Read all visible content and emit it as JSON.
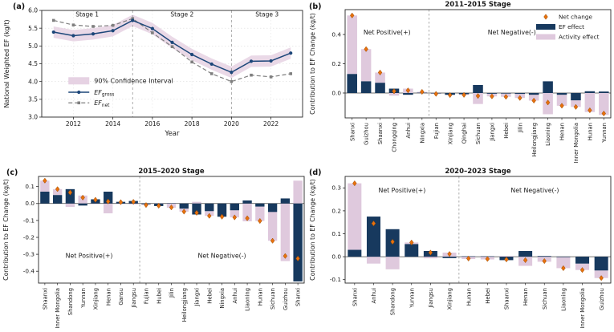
{
  "colors": {
    "ef_effect": "#17395e",
    "activity_effect": "#dfc9dd",
    "ci_band": "#e6d2e3",
    "gross_line": "#1c4679",
    "net_line": "#7f7f7f",
    "net_marker": "#e8710d",
    "net_marker_edge": "#9a4a00",
    "divider": "#999999",
    "spine": "#262626"
  },
  "chart_data": [
    {
      "panel_label": "(a)",
      "type": "line",
      "title": "",
      "xlabel": "Year",
      "ylabel": "National Weighted EF (kg/t)",
      "x": [
        2011,
        2012,
        2013,
        2014,
        2015,
        2016,
        2017,
        2018,
        2019,
        2020,
        2021,
        2022,
        2023
      ],
      "xlim": [
        2010.4,
        2023.6
      ],
      "ylim": [
        3.0,
        6.0
      ],
      "xticks": [
        2012,
        2014,
        2016,
        2018,
        2020,
        2022
      ],
      "yticks": [
        3.0,
        3.5,
        4.0,
        4.5,
        5.0,
        5.5,
        6.0
      ],
      "grid": true,
      "stage_dividers_x": [
        2015,
        2020
      ],
      "stage_labels": [
        {
          "text": "Stage 1",
          "x": 2012.7,
          "y": 5.83
        },
        {
          "text": "Stage 2",
          "x": 2017.5,
          "y": 5.83
        },
        {
          "text": "Stage 3",
          "x": 2021.8,
          "y": 5.83
        }
      ],
      "series": [
        {
          "name": "EF_gross",
          "legend_main": "EF",
          "legend_sub": "gross",
          "values": [
            5.39,
            5.29,
            5.34,
            5.43,
            5.72,
            5.49,
            5.1,
            4.76,
            4.49,
            4.26,
            4.57,
            4.58,
            4.8
          ]
        },
        {
          "name": "EF_net",
          "legend_main": "EF",
          "legend_sub": "net",
          "values": [
            5.72,
            5.59,
            5.55,
            5.58,
            5.77,
            5.37,
            4.98,
            4.55,
            4.22,
            4.0,
            4.18,
            4.13,
            4.22
          ]
        }
      ],
      "ci": {
        "label": "90% Confidence Interval",
        "halfwidth": 0.16
      },
      "legend_position": "lower-left-inside"
    },
    {
      "panel_label": "(b)",
      "type": "bar",
      "title": "2011–2015 Stage",
      "xlabel": "",
      "ylabel": "Contribution to EF Change (kg/t)",
      "categories": [
        "Shanxi",
        "Guizhou",
        "Shaanxi",
        "Chongqing",
        "Anhui",
        "Ningxia",
        "Fujian",
        "Xinjiang",
        "Qinghai",
        "Sichuan",
        "Jiangxi",
        "Hebei",
        "Jilin",
        "Heilongjiang",
        "Liaoning",
        "Henan",
        "Inner Mongolia",
        "Hunan",
        "Yunnan"
      ],
      "split_index": 6,
      "series": [
        {
          "name": "EF effect",
          "values": [
            0.13,
            0.08,
            0.07,
            0.03,
            -0.012,
            0.002,
            -0.003,
            -0.012,
            -0.008,
            0.055,
            -0.005,
            -0.004,
            -0.006,
            -0.012,
            0.08,
            -0.012,
            -0.05,
            0.012,
            0.01
          ]
        },
        {
          "name": "Activity effect",
          "values": [
            0.4,
            0.22,
            0.07,
            -0.018,
            0.03,
            0.006,
            -0.003,
            -0.002,
            -0.005,
            -0.075,
            -0.018,
            -0.022,
            -0.028,
            -0.04,
            -0.145,
            -0.075,
            -0.045,
            -0.13,
            -0.15
          ]
        }
      ],
      "net_change": [
        0.53,
        0.3,
        0.14,
        0.012,
        0.018,
        0.008,
        -0.006,
        -0.014,
        -0.013,
        -0.02,
        -0.023,
        -0.026,
        -0.034,
        -0.052,
        -0.065,
        -0.087,
        -0.095,
        -0.118,
        -0.14
      ],
      "ylim": [
        -0.17,
        0.57
      ],
      "yticks": [
        0.0,
        0.2,
        0.4
      ],
      "zones": {
        "positive": "Net Positive(+)",
        "negative": "Net Negative(-)",
        "label_y": 0.4
      },
      "legend": [
        "Net change",
        "EF effect",
        "Activity effect"
      ],
      "show_legend": true,
      "grid": false
    },
    {
      "panel_label": "(c)",
      "type": "bar",
      "title": "2015–2020 Stage",
      "xlabel": "",
      "ylabel": "Contribution to EF Change (kg/t)",
      "categories": [
        "Shaanxi",
        "Inner Mongolia",
        "Shandong",
        "Yunnan",
        "Xinjiang",
        "Henan",
        "Gansu",
        "Jiangsu",
        "Fujian",
        "Hubei",
        "Jilin",
        "Heilongjiang",
        "Jiangxi",
        "Hebei",
        "Ningxia",
        "Anhui",
        "Liaoning",
        "Hunan",
        "Sichuan",
        "Guizhou",
        "Shanxi"
      ],
      "split_index": 8,
      "series": [
        {
          "name": "EF effect",
          "values": [
            0.07,
            0.05,
            0.085,
            -0.012,
            0.025,
            0.07,
            0.01,
            0.015,
            -0.004,
            -0.015,
            0.002,
            -0.03,
            -0.065,
            -0.045,
            -0.078,
            -0.04,
            0.018,
            -0.018,
            -0.05,
            0.03,
            -0.46
          ]
        },
        {
          "name": "Activity effect",
          "values": [
            0.065,
            0.035,
            -0.02,
            0.047,
            -0.003,
            -0.058,
            -0.002,
            -0.005,
            -0.005,
            0.002,
            -0.025,
            -0.018,
            0.01,
            -0.028,
            0.0,
            -0.042,
            -0.105,
            -0.085,
            -0.17,
            -0.34,
            0.135
          ]
        }
      ],
      "net_change": [
        0.135,
        0.085,
        0.065,
        0.035,
        0.022,
        0.012,
        0.008,
        0.01,
        -0.009,
        -0.013,
        -0.023,
        -0.048,
        -0.055,
        -0.073,
        -0.078,
        -0.082,
        -0.087,
        -0.103,
        -0.22,
        -0.31,
        -0.325
      ],
      "ylim": [
        -0.47,
        0.16
      ],
      "yticks": [
        0.1,
        0.0,
        -0.1,
        -0.2,
        -0.3,
        -0.4
      ],
      "zones": {
        "positive": "Net Positive(+)",
        "negative": "Net Negative(-)",
        "label_y": -0.32
      },
      "legend": [],
      "show_legend": false,
      "grid": false
    },
    {
      "panel_label": "(d)",
      "type": "bar",
      "title": "2020–2023 Stage",
      "xlabel": "",
      "ylabel": "Contribution to EF Change (kg/t)",
      "categories": [
        "Shanxi",
        "Anhui",
        "Shandong",
        "Yunnan",
        "Jiangsu",
        "Xinjiang",
        "Hunan",
        "Hebei",
        "Shaanxi",
        "Henan",
        "Sichuan",
        "Liaoning",
        "Inner Mongolia",
        "Guizhou"
      ],
      "split_index": 6,
      "series": [
        {
          "name": "EF effect",
          "values": [
            0.03,
            0.175,
            0.12,
            0.055,
            0.025,
            -0.006,
            0.002,
            0.002,
            -0.015,
            0.025,
            0.003,
            -0.002,
            -0.03,
            -0.06
          ]
        },
        {
          "name": "Activity effect",
          "values": [
            0.29,
            -0.03,
            -0.055,
            0.007,
            -0.007,
            0.018,
            -0.01,
            -0.012,
            0.003,
            -0.04,
            -0.022,
            -0.048,
            -0.028,
            -0.033
          ]
        }
      ],
      "net_change": [
        0.32,
        0.145,
        0.065,
        0.062,
        0.018,
        0.012,
        -0.008,
        -0.01,
        -0.012,
        -0.015,
        -0.019,
        -0.05,
        -0.058,
        -0.093
      ],
      "ylim": [
        -0.115,
        0.35
      ],
      "yticks": [
        0.3,
        0.2,
        0.1,
        0.0,
        -0.1
      ],
      "zones": {
        "positive": "Net Positive(+)",
        "negative": "Net Negative(-)",
        "label_y": 0.28
      },
      "legend": [],
      "show_legend": false,
      "grid": false
    }
  ]
}
